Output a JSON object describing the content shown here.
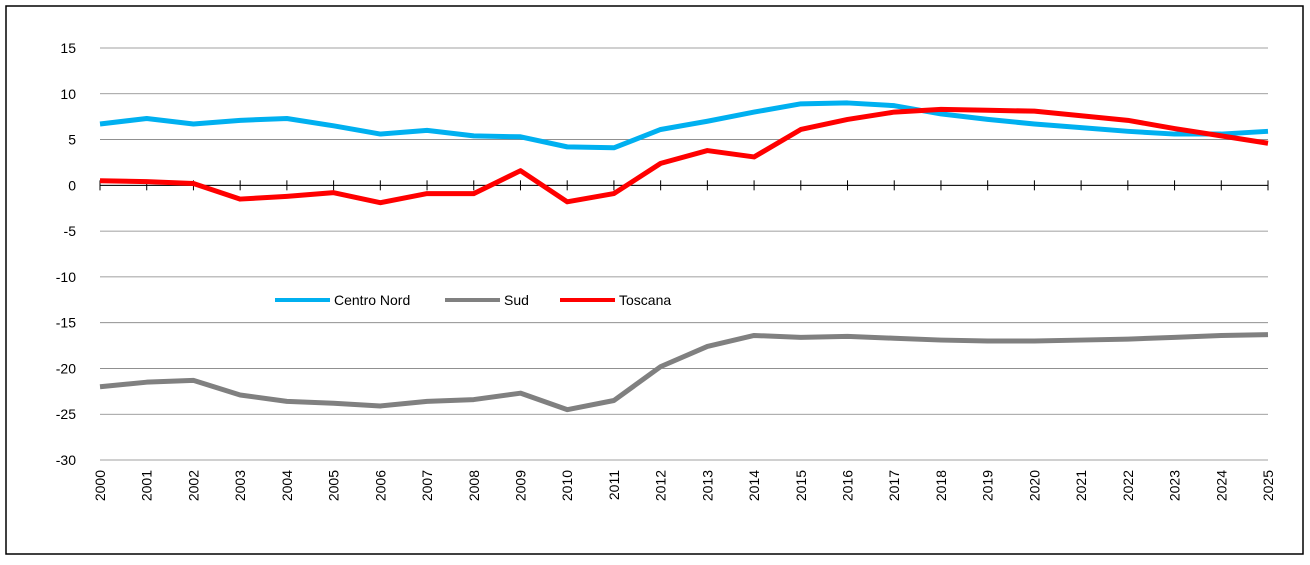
{
  "chart_data": {
    "type": "line",
    "categories": [
      "2000",
      "2001",
      "2002",
      "2003",
      "2004",
      "2005",
      "2006",
      "2007",
      "2008",
      "2009",
      "2010",
      "2011",
      "2012",
      "2013",
      "2014",
      "2015",
      "2016",
      "2017",
      "2018",
      "2019",
      "2020",
      "2021",
      "2022",
      "2023",
      "2024",
      "2025"
    ],
    "series": [
      {
        "name": "Centro Nord",
        "color": "#00b0f0",
        "values": [
          6.7,
          7.3,
          6.7,
          7.1,
          7.3,
          6.5,
          5.6,
          6.0,
          5.4,
          5.3,
          4.2,
          4.1,
          6.1,
          7.0,
          8.0,
          8.9,
          9.0,
          8.7,
          7.8,
          7.2,
          6.7,
          6.3,
          5.9,
          5.6,
          5.6,
          5.9
        ]
      },
      {
        "name": "Sud",
        "color": "#808080",
        "values": [
          -22.0,
          -21.5,
          -21.3,
          -22.9,
          -23.6,
          -23.8,
          -24.1,
          -23.6,
          -23.4,
          -22.7,
          -24.5,
          -23.5,
          -19.8,
          -17.6,
          -16.4,
          -16.6,
          -16.5,
          -16.7,
          -16.9,
          -17.0,
          -17.0,
          -16.9,
          -16.8,
          -16.6,
          -16.4,
          -16.3
        ]
      },
      {
        "name": "Toscana",
        "color": "#ff0000",
        "values": [
          0.5,
          0.4,
          0.2,
          -1.5,
          -1.2,
          -0.8,
          -1.9,
          -0.9,
          -0.9,
          1.6,
          -1.8,
          -0.9,
          2.4,
          3.8,
          3.1,
          6.1,
          7.2,
          8.0,
          8.3,
          8.2,
          8.1,
          7.6,
          7.1,
          6.2,
          5.4,
          4.6
        ]
      }
    ],
    "ylim": [
      -30,
      15
    ],
    "yticks": [
      -30,
      -25,
      -20,
      -15,
      -10,
      -5,
      0,
      5,
      10,
      15
    ],
    "grid": true
  }
}
